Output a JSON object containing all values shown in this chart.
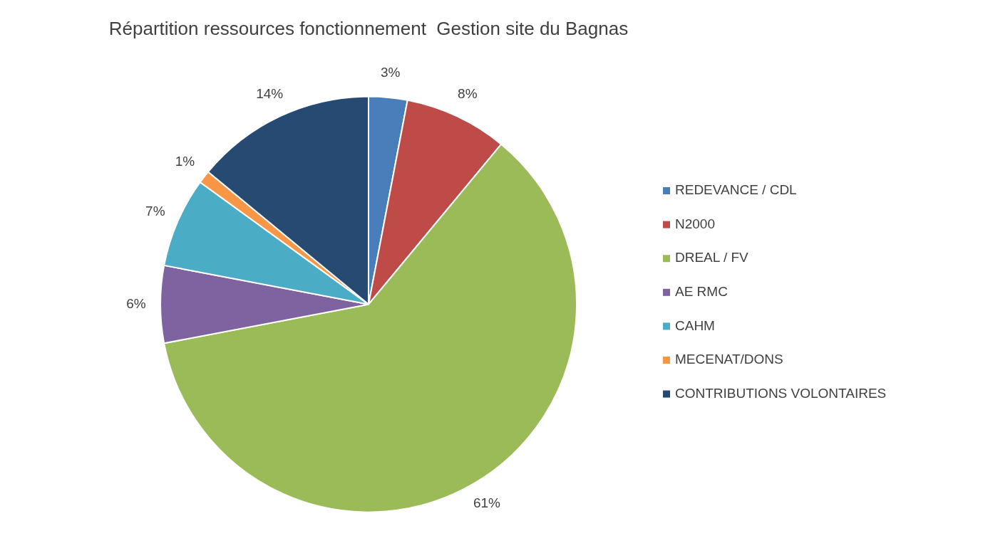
{
  "chart_data": {
    "type": "pie",
    "title": "Répartition ressources fonctionnement  Gestion site du Bagnas",
    "categories": [
      "REDEVANCE / CDL",
      "N2000",
      "DREAL / FV",
      "AE RMC",
      "CAHM",
      "MECENAT/DONS",
      "CONTRIBUTIONS VOLONTAIRES"
    ],
    "values": [
      3,
      8,
      61,
      6,
      7,
      1,
      14
    ],
    "colors": [
      "#4a7ebb",
      "#be4b48",
      "#9bbb59",
      "#7f63a1",
      "#4bacc6",
      "#f79646",
      "#264a72"
    ],
    "value_labels": [
      "3%",
      "8%",
      "61%",
      "6%",
      "7%",
      "1%",
      "14%"
    ],
    "legend": "right"
  }
}
